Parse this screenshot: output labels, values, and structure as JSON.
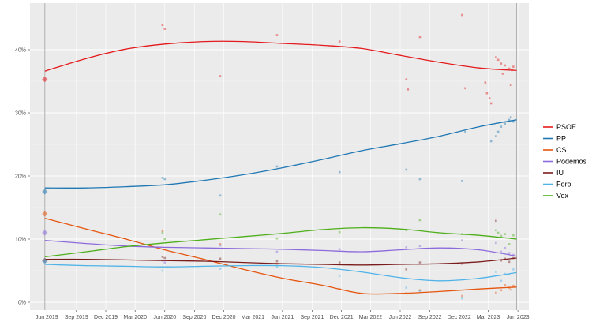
{
  "chart_data": {
    "type": "scatter",
    "title": "",
    "xlabel": "",
    "ylabel": "",
    "ylim": [
      0,
      46
    ],
    "xlim": [
      "2019-04-10",
      "2023-07-05"
    ],
    "y_ticks": [
      {
        "value": 0,
        "label": "0%"
      },
      {
        "value": 10,
        "label": "10%"
      },
      {
        "value": 20,
        "label": "20%"
      },
      {
        "value": 30,
        "label": "30%"
      },
      {
        "value": 40,
        "label": "40%"
      }
    ],
    "x_ticks": [
      {
        "date": "2019-06-01",
        "label": "Jun 2019"
      },
      {
        "date": "2019-09-01",
        "label": "Sep 2019"
      },
      {
        "date": "2019-12-01",
        "label": "Dec 2019"
      },
      {
        "date": "2020-03-01",
        "label": "Mar 2020"
      },
      {
        "date": "2020-06-01",
        "label": "Jun 2020"
      },
      {
        "date": "2020-09-01",
        "label": "Sep 2020"
      },
      {
        "date": "2020-12-01",
        "label": "Dec 2020"
      },
      {
        "date": "2021-03-01",
        "label": "Mar 2021"
      },
      {
        "date": "2021-06-01",
        "label": "Jun 2021"
      },
      {
        "date": "2021-09-01",
        "label": "Sep 2021"
      },
      {
        "date": "2021-12-01",
        "label": "Dec 2021"
      },
      {
        "date": "2022-03-01",
        "label": "Mar 2022"
      },
      {
        "date": "2022-06-01",
        "label": "Jun 2022"
      },
      {
        "date": "2022-09-01",
        "label": "Sep 2022"
      },
      {
        "date": "2022-12-01",
        "label": "Dec 2022"
      },
      {
        "date": "2023-03-01",
        "label": "Mar 2023"
      },
      {
        "date": "2023-06-01",
        "label": "Jun 2023"
      }
    ],
    "election_dates": [
      "2019-05-26",
      "2023-05-28"
    ],
    "grid": true,
    "legend_position": "right",
    "series": [
      {
        "name": "PSOE",
        "color": "#e41a1c",
        "election_result": {
          "date": "2019-05-26",
          "value": 35.3
        },
        "trend": [
          [
            "2019-05-26",
            36.6
          ],
          [
            "2019-10-01",
            38.6
          ],
          [
            "2020-02-01",
            40.1
          ],
          [
            "2020-06-01",
            40.9
          ],
          [
            "2020-10-01",
            41.3
          ],
          [
            "2021-02-01",
            41.3
          ],
          [
            "2021-06-01",
            41.0
          ],
          [
            "2021-10-01",
            40.7
          ],
          [
            "2022-02-01",
            40.2
          ],
          [
            "2022-06-01",
            39.1
          ],
          [
            "2022-10-01",
            38.0
          ],
          [
            "2023-02-01",
            37.1
          ],
          [
            "2023-05-28",
            36.7
          ]
        ],
        "polls": [
          [
            "2020-05-25",
            43.9
          ],
          [
            "2020-06-01",
            43.3
          ],
          [
            "2020-11-20",
            35.8
          ],
          [
            "2021-05-15",
            42.3
          ],
          [
            "2021-11-25",
            41.3
          ],
          [
            "2022-06-20",
            35.3
          ],
          [
            "2022-06-25",
            33.7
          ],
          [
            "2022-08-01",
            42.0
          ],
          [
            "2022-12-10",
            45.5
          ],
          [
            "2022-12-20",
            33.9
          ],
          [
            "2023-02-20",
            34.8
          ],
          [
            "2023-02-25",
            33.1
          ],
          [
            "2023-03-05",
            32.3
          ],
          [
            "2023-03-10",
            31.5
          ],
          [
            "2023-03-25",
            38.8
          ],
          [
            "2023-04-01",
            38.4
          ],
          [
            "2023-04-10",
            37.8
          ],
          [
            "2023-04-15",
            36.2
          ],
          [
            "2023-04-22",
            37.5
          ],
          [
            "2023-05-05",
            37.0
          ],
          [
            "2023-05-10",
            34.4
          ],
          [
            "2023-05-18",
            37.3
          ],
          [
            "2023-05-15",
            36.8
          ]
        ]
      },
      {
        "name": "PP",
        "color": "#1f78b4",
        "election_result": {
          "date": "2019-05-26",
          "value": 17.5
        },
        "trend": [
          [
            "2019-05-26",
            18.1
          ],
          [
            "2019-10-01",
            18.1
          ],
          [
            "2020-02-01",
            18.3
          ],
          [
            "2020-06-01",
            18.6
          ],
          [
            "2020-10-01",
            19.3
          ],
          [
            "2021-02-01",
            20.2
          ],
          [
            "2021-06-01",
            21.3
          ],
          [
            "2021-10-01",
            22.6
          ],
          [
            "2022-02-01",
            24.0
          ],
          [
            "2022-06-01",
            25.1
          ],
          [
            "2022-10-01",
            26.3
          ],
          [
            "2023-02-01",
            27.8
          ],
          [
            "2023-05-28",
            28.9
          ]
        ],
        "polls": [
          [
            "2020-05-25",
            19.7
          ],
          [
            "2020-06-01",
            19.5
          ],
          [
            "2020-11-20",
            16.9
          ],
          [
            "2021-05-15",
            21.5
          ],
          [
            "2021-11-25",
            20.6
          ],
          [
            "2022-06-20",
            21.0
          ],
          [
            "2022-08-01",
            19.5
          ],
          [
            "2022-12-10",
            19.2
          ],
          [
            "2022-12-20",
            27.0
          ],
          [
            "2023-03-10",
            25.5
          ],
          [
            "2023-03-25",
            26.3
          ],
          [
            "2023-04-01",
            27.0
          ],
          [
            "2023-04-10",
            27.8
          ],
          [
            "2023-04-22",
            28.3
          ],
          [
            "2023-05-05",
            28.9
          ],
          [
            "2023-05-10",
            29.3
          ],
          [
            "2023-05-18",
            28.6
          ]
        ]
      },
      {
        "name": "CS",
        "color": "#e6550d",
        "election_result": {
          "date": "2019-05-26",
          "value": 14.0
        },
        "trend": [
          [
            "2019-05-26",
            13.3
          ],
          [
            "2019-10-01",
            11.6
          ],
          [
            "2020-02-01",
            10.0
          ],
          [
            "2020-06-01",
            8.3
          ],
          [
            "2020-10-01",
            6.8
          ],
          [
            "2021-02-01",
            5.2
          ],
          [
            "2021-06-01",
            3.8
          ],
          [
            "2021-10-01",
            2.7
          ],
          [
            "2022-02-01",
            1.4
          ],
          [
            "2022-06-01",
            1.4
          ],
          [
            "2022-10-01",
            1.7
          ],
          [
            "2023-02-01",
            2.1
          ],
          [
            "2023-05-28",
            2.4
          ]
        ],
        "polls": [
          [
            "2020-05-25",
            11.3
          ],
          [
            "2020-11-20",
            9.2
          ],
          [
            "2021-05-15",
            6.1
          ],
          [
            "2021-11-25",
            2.1
          ],
          [
            "2022-06-20",
            1.4
          ],
          [
            "2022-08-01",
            1.9
          ],
          [
            "2022-12-10",
            1.0
          ],
          [
            "2023-03-25",
            1.5
          ],
          [
            "2023-04-10",
            1.9
          ],
          [
            "2023-04-22",
            2.7
          ],
          [
            "2023-05-05",
            2.3
          ],
          [
            "2023-05-10",
            2.0
          ],
          [
            "2023-05-18",
            2.6
          ]
        ]
      },
      {
        "name": "Podemos",
        "color": "#8c6bdc",
        "election_result": {
          "date": "2019-05-26",
          "value": 11.0
        },
        "trend": [
          [
            "2019-05-26",
            9.8
          ],
          [
            "2019-10-01",
            9.3
          ],
          [
            "2020-02-01",
            8.9
          ],
          [
            "2020-06-01",
            8.7
          ],
          [
            "2020-10-01",
            8.6
          ],
          [
            "2021-02-01",
            8.5
          ],
          [
            "2021-06-01",
            8.4
          ],
          [
            "2021-10-01",
            8.2
          ],
          [
            "2022-02-01",
            8.0
          ],
          [
            "2022-06-01",
            8.3
          ],
          [
            "2022-10-01",
            8.6
          ],
          [
            "2023-02-01",
            8.3
          ],
          [
            "2023-05-28",
            7.3
          ]
        ],
        "polls": [
          [
            "2020-05-25",
            6.6
          ],
          [
            "2020-06-01",
            6.3
          ],
          [
            "2020-11-20",
            9.0
          ],
          [
            "2021-05-15",
            8.0
          ],
          [
            "2021-11-25",
            8.4
          ],
          [
            "2022-06-20",
            8.7
          ],
          [
            "2022-08-01",
            8.9
          ],
          [
            "2022-12-10",
            9.8
          ],
          [
            "2023-03-25",
            9.4
          ],
          [
            "2023-04-10",
            8.0
          ],
          [
            "2023-04-22",
            8.6
          ],
          [
            "2023-05-05",
            7.8
          ],
          [
            "2023-05-18",
            7.5
          ]
        ]
      },
      {
        "name": "IU",
        "color": "#7b1c1c",
        "election_result": {
          "date": "2019-05-26",
          "value": 6.6
        },
        "trend": [
          [
            "2019-05-26",
            6.8
          ],
          [
            "2019-10-01",
            6.8
          ],
          [
            "2020-02-01",
            6.7
          ],
          [
            "2020-06-01",
            6.6
          ],
          [
            "2020-10-01",
            6.5
          ],
          [
            "2021-02-01",
            6.3
          ],
          [
            "2021-06-01",
            6.1
          ],
          [
            "2021-10-01",
            6.0
          ],
          [
            "2022-02-01",
            5.9
          ],
          [
            "2022-06-01",
            6.0
          ],
          [
            "2022-10-01",
            6.1
          ],
          [
            "2023-02-01",
            6.4
          ],
          [
            "2023-05-28",
            7.0
          ]
        ],
        "polls": [
          [
            "2020-05-25",
            7.2
          ],
          [
            "2020-06-01",
            7.0
          ],
          [
            "2020-11-20",
            6.9
          ],
          [
            "2021-05-15",
            6.5
          ],
          [
            "2021-11-25",
            6.3
          ],
          [
            "2022-06-20",
            5.2
          ],
          [
            "2022-08-01",
            6.3
          ],
          [
            "2022-12-10",
            6.1
          ],
          [
            "2023-03-25",
            12.9
          ],
          [
            "2023-04-10",
            6.6
          ],
          [
            "2023-04-22",
            6.9
          ],
          [
            "2023-05-05",
            6.4
          ],
          [
            "2023-05-18",
            7.0
          ]
        ]
      },
      {
        "name": "Foro",
        "color": "#4fb3e8",
        "election_result": {
          "date": "2019-05-26",
          "value": 6.5
        },
        "trend": [
          [
            "2019-05-26",
            6.0
          ],
          [
            "2019-10-01",
            5.8
          ],
          [
            "2020-02-01",
            5.7
          ],
          [
            "2020-06-01",
            5.6
          ],
          [
            "2020-10-01",
            5.7
          ],
          [
            "2021-02-01",
            5.8
          ],
          [
            "2021-06-01",
            5.8
          ],
          [
            "2021-10-01",
            5.5
          ],
          [
            "2022-02-01",
            4.8
          ],
          [
            "2022-06-01",
            3.9
          ],
          [
            "2022-10-01",
            3.4
          ],
          [
            "2023-02-01",
            3.8
          ],
          [
            "2023-05-28",
            4.7
          ]
        ],
        "polls": [
          [
            "2020-05-25",
            5.0
          ],
          [
            "2020-11-20",
            5.3
          ],
          [
            "2021-05-15",
            5.6
          ],
          [
            "2021-11-25",
            4.2
          ],
          [
            "2022-06-20",
            2.3
          ],
          [
            "2022-08-01",
            1.8
          ],
          [
            "2022-12-10",
            0.6
          ],
          [
            "2023-03-25",
            4.8
          ],
          [
            "2023-04-10",
            3.4
          ],
          [
            "2023-04-22",
            4.5
          ],
          [
            "2023-05-05",
            4.4
          ],
          [
            "2023-05-18",
            5.2
          ]
        ]
      },
      {
        "name": "Vox",
        "color": "#4daf1a",
        "election_result": null,
        "trend": [
          [
            "2019-05-26",
            7.2
          ],
          [
            "2019-10-01",
            8.0
          ],
          [
            "2020-02-01",
            8.8
          ],
          [
            "2020-06-01",
            9.4
          ],
          [
            "2020-10-01",
            9.9
          ],
          [
            "2021-02-01",
            10.4
          ],
          [
            "2021-06-01",
            10.9
          ],
          [
            "2021-10-01",
            11.5
          ],
          [
            "2022-02-01",
            11.8
          ],
          [
            "2022-06-01",
            11.6
          ],
          [
            "2022-10-01",
            11.0
          ],
          [
            "2023-02-01",
            10.6
          ],
          [
            "2023-05-28",
            10.0
          ]
        ],
        "polls": [
          [
            "2020-05-25",
            11.0
          ],
          [
            "2020-06-01",
            10.0
          ],
          [
            "2020-11-20",
            13.9
          ],
          [
            "2021-05-15",
            10.1
          ],
          [
            "2021-11-25",
            11.1
          ],
          [
            "2022-06-20",
            11.4
          ],
          [
            "2022-08-01",
            13.0
          ],
          [
            "2022-12-10",
            10.8
          ],
          [
            "2023-03-25",
            11.4
          ],
          [
            "2023-04-01",
            11.0
          ],
          [
            "2023-04-10",
            10.5
          ],
          [
            "2023-04-22",
            10.8
          ],
          [
            "2023-05-05",
            9.2
          ],
          [
            "2023-05-18",
            10.6
          ]
        ]
      }
    ]
  }
}
